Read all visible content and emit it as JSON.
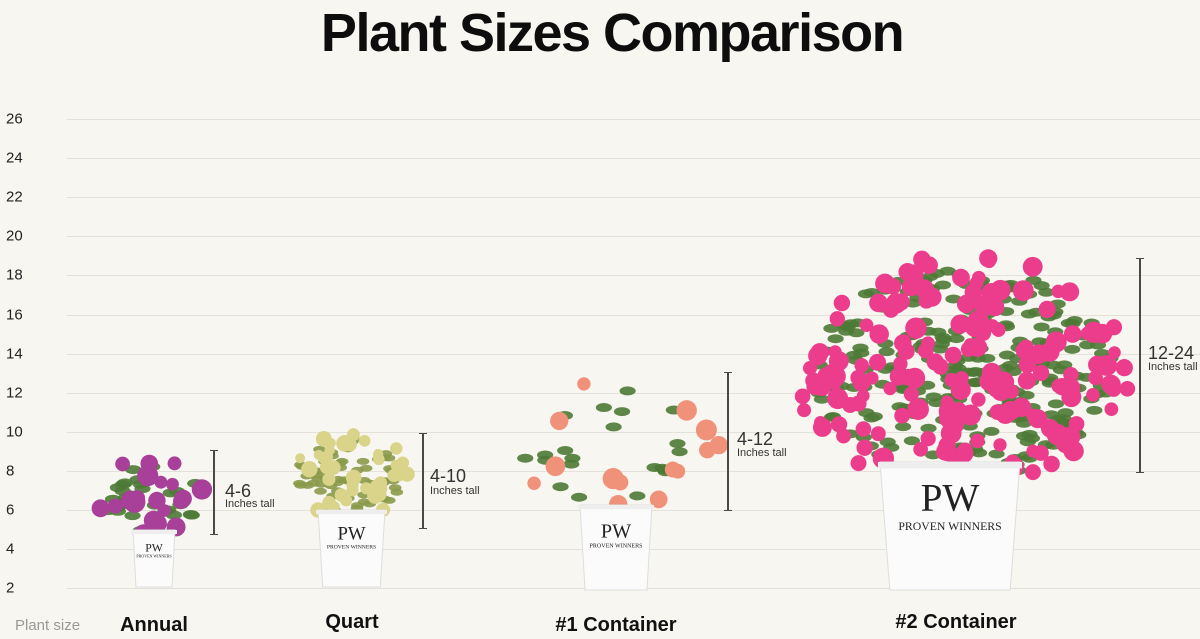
{
  "title": "Plant Sizes Comparison",
  "axis": {
    "label": "Plant size",
    "ticks": [
      "26",
      "24",
      "22",
      "20",
      "18",
      "16",
      "14",
      "12",
      "10",
      "8",
      "6",
      "4",
      "2"
    ]
  },
  "plants": [
    {
      "category": "Annual",
      "range": "4-6",
      "unit": "Inches tall",
      "flower_color": "#a8409a",
      "pot_brand": "PW",
      "pot_text": "PROVEN WINNERS"
    },
    {
      "category": "Quart",
      "range": "4-10",
      "unit": "Inches tall",
      "flower_color": "#d9d48a",
      "pot_brand": "PW",
      "pot_text": "PROVEN WINNERS"
    },
    {
      "category": "#1 Container",
      "range": "4-12",
      "unit": "Inches tall",
      "flower_color": "#f0927a",
      "pot_brand": "PW",
      "pot_text": "PROVEN WINNERS"
    },
    {
      "category": "#2 Container",
      "range": "12-24",
      "unit": "Inches tall",
      "flower_color": "#ec3d8c",
      "pot_brand": "PW",
      "pot_text": "PROVEN WINNERS"
    }
  ],
  "colors": {
    "background": "#f8f6f1",
    "grid": "#e4e1da",
    "leaf": "#4d7a35"
  }
}
